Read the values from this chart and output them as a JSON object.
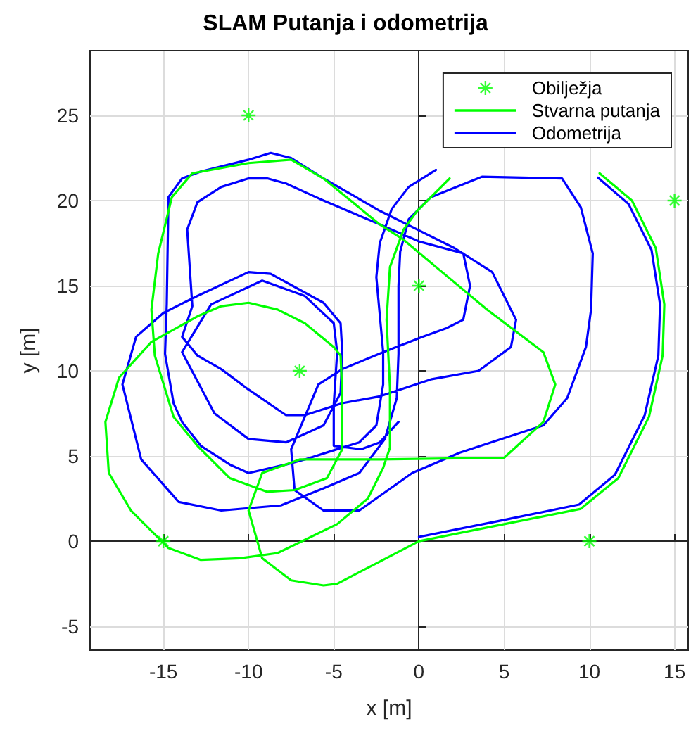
{
  "chart_data": {
    "type": "line",
    "title": "SLAM Putanja i odometrija",
    "xlabel": "x [m]",
    "ylabel": "y [m]",
    "xlim": [
      -19.3,
      15.8
    ],
    "xticks": [
      -15,
      -10,
      -5,
      0,
      5,
      10,
      15
    ],
    "ylim": [
      -6.4,
      28.8
    ],
    "yticks": [
      -5,
      0,
      5,
      10,
      15,
      20,
      25
    ],
    "grid": true,
    "legend": "top right",
    "line_style": "solid",
    "series": [
      {
        "name": "Obilježja",
        "type": "scatter",
        "marker": "cross",
        "color": "#00ff00",
        "x": [
          -10,
          15,
          0,
          -7,
          -15,
          10
        ],
        "values": [
          25,
          20,
          15,
          10,
          0,
          0
        ]
      },
      {
        "name": "Stvarna putanja",
        "marker": "none",
        "color": "#00ff00",
        "x": [
          0,
          5,
          9.5,
          11.7,
          13.5,
          14.3,
          14.4,
          13.9,
          12.5,
          10.6,
          8,
          4,
          1.8,
          -0.1,
          -0.9,
          -1.7,
          -1.9,
          -1.7,
          -1.7,
          -2.1,
          -3,
          -4.8,
          -8.3,
          -10.5,
          -12.8,
          -14.7,
          -16.9,
          -18.2,
          -18.4,
          -17.6,
          -15.7,
          -13,
          -11.6,
          -10,
          -8.3,
          -6.7,
          -5,
          -4.6,
          -4.5,
          -4.5,
          -5.4,
          -7.3,
          -8.9,
          -11.1,
          -13,
          -14.4,
          -15.5,
          -15.7,
          -15.3,
          -14.5,
          -13.3,
          -10,
          -7.5,
          -5.6,
          -2.3,
          -0.9,
          1,
          4,
          7.3,
          8,
          7.3,
          5,
          -2.3,
          -7,
          -9.2,
          -10,
          -9.2,
          -7.5,
          -5.6,
          -4.8,
          -2.5,
          0
        ],
        "values": [
          0,
          1,
          1.9,
          3.7,
          7.3,
          10.9,
          13.9,
          17.2,
          20,
          21.6,
          null,
          null,
          21.3,
          19.4,
          18.3,
          16.1,
          13,
          9,
          5.5,
          4.3,
          2.5,
          1,
          -0.7,
          -1,
          -1.1,
          -0.4,
          1.8,
          4,
          7,
          9.6,
          11.7,
          13.2,
          13.8,
          14,
          13.6,
          12.8,
          11.4,
          10.9,
          8.7,
          5.4,
          3.7,
          3,
          2.9,
          3.7,
          5.6,
          7.3,
          10.9,
          13.6,
          16.9,
          20.2,
          21.6,
          22.2,
          22.4,
          21.3,
          18.6,
          17.7,
          16.1,
          13.6,
          11.1,
          9.2,
          7,
          4.9,
          4.8,
          4.8,
          4,
          1.8,
          -1,
          -2.3,
          -2.6,
          -2.5,
          -1.3,
          0
        ]
      },
      {
        "name": "Odometrija",
        "marker": "none",
        "color": "#0000ff",
        "x": [
          0,
          5,
          9.4,
          11.5,
          13.25,
          14.05,
          14.15,
          13.65,
          12.3,
          10.5,
          8,
          3,
          1,
          -0.6,
          -1.6,
          -2.3,
          -2.5,
          -2.1,
          -2.1,
          -2.5,
          -3.5,
          -4.8,
          -6.7,
          -7.8,
          -10,
          -11.1,
          -12.8,
          -13.9,
          -14.4,
          -14.9,
          -14.8,
          -14.7,
          -13.9,
          -12.8,
          -10,
          -8.7,
          -7.5,
          -5.6,
          -2.3,
          -0.7,
          2.1,
          4.3,
          5.7,
          5.4,
          3.5,
          0.7,
          -2.3,
          -4.5,
          -6.7,
          -7.8,
          -10,
          -11.6,
          -13,
          -13.9,
          -13.3,
          -13.6,
          -13,
          -11.6,
          -10,
          -8.9,
          -7.8,
          -6.7,
          -5.6,
          -2.3,
          0,
          2.6,
          3,
          2.6,
          1.6,
          0.2,
          -2.1,
          -4.5,
          -5.9,
          -6.7,
          -7.5,
          -7.3,
          -5.6,
          -3.5,
          -0.4,
          2.4,
          7.3,
          8.7,
          9.8,
          10.1,
          10.2,
          9.5,
          8.4,
          3.7,
          0.7,
          -0.6,
          -1.1,
          -1.2,
          -1.2,
          -1.3,
          -2,
          -3.5,
          -5.6,
          -8.1,
          -11.6,
          -14.1,
          -16.3,
          -17.4,
          -16.6,
          -15,
          -13,
          -10,
          -8.7,
          -5.6,
          -4.6,
          -4.5,
          -4.6,
          -5.6,
          -7.8,
          -10,
          -12,
          -13.9,
          -12.2,
          -9.2,
          -6.7,
          -5,
          -4.8,
          -5,
          -5,
          -3.4,
          -2.3,
          -1.2
        ],
        "values": [
          0.25,
          1.25,
          2.15,
          3.9,
          7.4,
          10.9,
          13.9,
          17.1,
          19.8,
          21.35,
          null,
          null,
          21.8,
          20.8,
          19.5,
          17.5,
          15.5,
          11.1,
          9.2,
          6.8,
          5.8,
          5.4,
          4.8,
          4.5,
          4,
          4.5,
          5.6,
          7,
          8.1,
          11,
          13.9,
          20.2,
          21.3,
          21.7,
          22.4,
          22.8,
          22.5,
          21.3,
          19.4,
          18.6,
          17.2,
          15.8,
          13,
          11.4,
          10,
          9.5,
          8.5,
          8.1,
          7.4,
          7.4,
          8.9,
          10.1,
          10.9,
          12,
          13.8,
          18.3,
          19.9,
          20.8,
          21.3,
          21.3,
          21,
          20.5,
          20,
          18.6,
          17.6,
          16.9,
          15,
          13,
          12.5,
          12,
          11.1,
          10.1,
          9.2,
          7.3,
          5.4,
          3,
          1.8,
          1.8,
          4,
          5.2,
          6.8,
          8.4,
          11.4,
          13.6,
          16.9,
          19.6,
          21.3,
          21.4,
          20.2,
          18.9,
          17,
          15,
          11,
          8.4,
          6,
          4,
          3.1,
          2.1,
          1.8,
          2.3,
          4.8,
          9.2,
          12,
          13.4,
          14.4,
          15.8,
          15.7,
          14,
          12.8,
          11.1,
          8.7,
          6.8,
          5.8,
          6,
          7.5,
          11.1,
          13.9,
          15.3,
          14.4,
          12.8,
          11.1,
          8,
          5.6,
          5.4,
          5.8,
          7
        ]
      }
    ]
  }
}
